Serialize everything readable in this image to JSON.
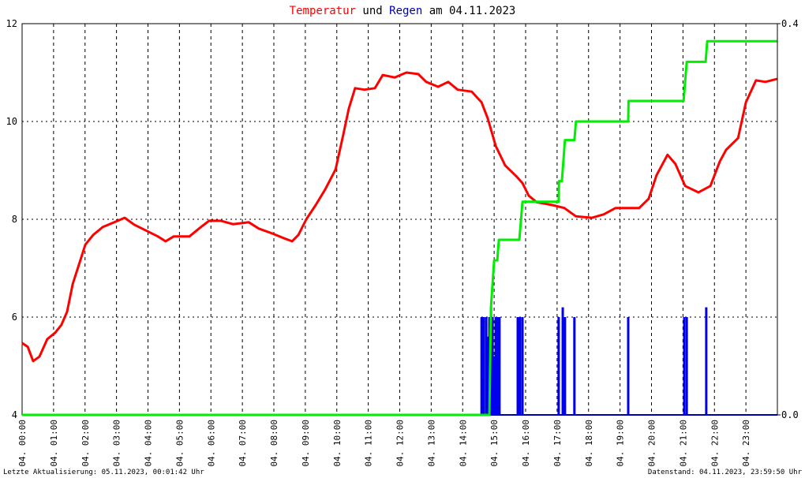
{
  "chart_data": {
    "type": "line",
    "title_words": [
      "und",
      "am 04.11.2023"
    ],
    "footer_left": "Letzte Aktualisierung: 05.11.2023, 00:01:42 Uhr",
    "footer_right": "Datenstand: 04.11.2023, 23:59:50 Uhr",
    "xlim": [
      0,
      24
    ],
    "xticks": [
      {
        "value": 0,
        "label": "04. 00:00"
      },
      {
        "value": 1,
        "label": "04. 01:00"
      },
      {
        "value": 2,
        "label": "04. 02:00"
      },
      {
        "value": 3,
        "label": "04. 03:00"
      },
      {
        "value": 4,
        "label": "04. 04:00"
      },
      {
        "value": 5,
        "label": "04. 05:00"
      },
      {
        "value": 6,
        "label": "04. 06:00"
      },
      {
        "value": 7,
        "label": "04. 07:00"
      },
      {
        "value": 8,
        "label": "04. 08:00"
      },
      {
        "value": 9,
        "label": "04. 09:00"
      },
      {
        "value": 10,
        "label": "04. 10:00"
      },
      {
        "value": 11,
        "label": "04. 11:00"
      },
      {
        "value": 12,
        "label": "04. 12:00"
      },
      {
        "value": 13,
        "label": "04. 13:00"
      },
      {
        "value": 14,
        "label": "04. 14:00"
      },
      {
        "value": 15,
        "label": "04. 15:00"
      },
      {
        "value": 16,
        "label": "04. 16:00"
      },
      {
        "value": 17,
        "label": "04. 17:00"
      },
      {
        "value": 18,
        "label": "04. 18:00"
      },
      {
        "value": 19,
        "label": "04. 19:00"
      },
      {
        "value": 20,
        "label": "04. 20:00"
      },
      {
        "value": 21,
        "label": "04. 21:00"
      },
      {
        "value": 22,
        "label": "04. 22:00"
      },
      {
        "value": 23,
        "label": "04. 23:00"
      }
    ],
    "ylim": [
      4,
      12
    ],
    "yticks": [
      4,
      6,
      8,
      10,
      12
    ],
    "y2lim": [
      0,
      0.4
    ],
    "y2ticks": [
      {
        "value": 0,
        "label": "0.0"
      },
      0.4
    ],
    "grid": true,
    "series": [
      {
        "name": "Temperatur",
        "type": "line",
        "color": "#ff0000",
        "x": [
          0,
          0.18,
          0.35,
          0.55,
          0.8,
          1.05,
          1.25,
          1.43,
          1.61,
          1.81,
          2.01,
          2.26,
          2.56,
          2.93,
          3.26,
          3.56,
          3.94,
          4.31,
          4.56,
          4.82,
          5.32,
          5.62,
          5.94,
          6.32,
          6.7,
          7.2,
          7.52,
          7.95,
          8.33,
          8.58,
          8.78,
          9.03,
          9.33,
          9.63,
          9.96,
          10.21,
          10.38,
          10.58,
          10.88,
          11.21,
          11.46,
          11.84,
          12.21,
          12.59,
          12.84,
          13.22,
          13.54,
          13.84,
          14.29,
          14.6,
          14.8,
          15.05,
          15.35,
          15.72,
          15.9,
          16.1,
          16.35,
          16.85,
          17.23,
          17.6,
          18.11,
          18.48,
          18.86,
          19.61,
          19.91,
          20.16,
          20.51,
          20.76,
          21.07,
          21.49,
          21.87,
          22.17,
          22.37,
          22.75,
          23,
          23.32,
          23.62,
          23.99
        ],
        "values": [
          5.47,
          5.39,
          5.1,
          5.19,
          5.55,
          5.68,
          5.84,
          6.11,
          6.68,
          7.08,
          7.48,
          7.68,
          7.84,
          7.94,
          8.03,
          7.89,
          7.77,
          7.65,
          7.55,
          7.65,
          7.65,
          7.81,
          7.97,
          7.97,
          7.9,
          7.94,
          7.81,
          7.71,
          7.61,
          7.55,
          7.68,
          8,
          8.29,
          8.61,
          9.02,
          9.74,
          10.26,
          10.68,
          10.65,
          10.68,
          10.95,
          10.9,
          11,
          10.97,
          10.81,
          10.71,
          10.81,
          10.65,
          10.61,
          10.39,
          10.06,
          9.5,
          9.1,
          8.87,
          8.74,
          8.48,
          8.35,
          8.29,
          8.23,
          8.06,
          8.03,
          8.1,
          8.23,
          8.23,
          8.42,
          8.9,
          9.32,
          9.13,
          8.68,
          8.55,
          8.68,
          9.18,
          9.42,
          9.66,
          10.39,
          10.84,
          10.81,
          10.87
        ]
      },
      {
        "type": "line",
        "axis": "y2",
        "color": "#00ee00",
        "x": [
          0,
          14.85,
          14.9,
          15,
          15.1,
          15.15,
          15.8,
          15.85,
          15.9,
          17.05,
          17.06,
          17.15,
          17.2,
          17.25,
          17.55,
          17.6,
          19.26,
          19.27,
          21.02,
          21.07,
          21.12,
          21.72,
          21.77,
          23.99
        ],
        "values": [
          0,
          0,
          0.11,
          0.158,
          0.158,
          0.179,
          0.179,
          0.198,
          0.218,
          0.218,
          0.239,
          0.239,
          0.26,
          0.281,
          0.281,
          0.3,
          0.3,
          0.321,
          0.321,
          0.342,
          0.361,
          0.361,
          0.382,
          0.382
        ]
      },
      {
        "name": "Regen",
        "type": "bar",
        "axis": "y2",
        "color": "#0000ee",
        "x": [
          14.6,
          14.67,
          14.75,
          14.8,
          14.85,
          14.9,
          14.95,
          15,
          15.05,
          15.1,
          15.17,
          15.75,
          15.82,
          15.9,
          17.05,
          17.18,
          17.25,
          17.55,
          19.26,
          21.04,
          21.12,
          21.74
        ],
        "values": [
          0.1,
          0.1,
          0.1,
          0.08,
          0.1,
          0.11,
          0.1,
          0.06,
          0.1,
          0.1,
          0.1,
          0.1,
          0.1,
          0.1,
          0.1,
          0.11,
          0.1,
          0.1,
          0.1,
          0.1,
          0.1,
          0.11
        ]
      }
    ]
  }
}
